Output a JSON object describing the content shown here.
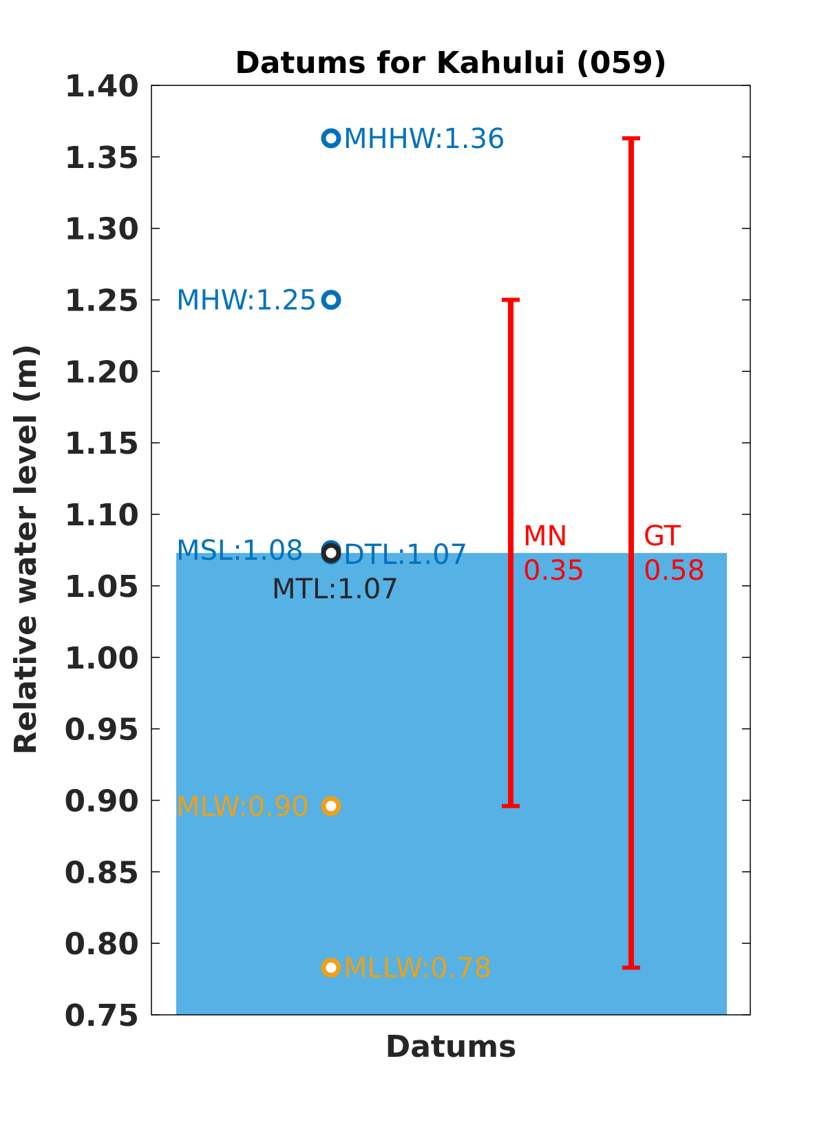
{
  "chart_data": {
    "type": "scatter",
    "title": "Datums for Kahului (059)",
    "xlabel": "Datums",
    "ylabel": "Relative water level (m)",
    "ylim": [
      0.75,
      1.4
    ],
    "yticks": [
      "0.75",
      "0.80",
      "0.85",
      "0.90",
      "0.95",
      "1.00",
      "1.05",
      "1.10",
      "1.15",
      "1.20",
      "1.25",
      "1.30",
      "1.35",
      "1.40"
    ],
    "grid": false,
    "bar": {
      "top": 1.073,
      "color": "#56B1E5"
    },
    "datums": [
      {
        "name": "MHHW",
        "value": 1.363,
        "label": "MHHW:1.36",
        "color": "#0072BD",
        "label_side": "right"
      },
      {
        "name": "MHW",
        "value": 1.25,
        "label": "MHW:1.25",
        "color": "#0072BD",
        "label_side": "left"
      },
      {
        "name": "MSL",
        "value": 1.075,
        "label": "MSL:1.08",
        "color": "#0072BD",
        "label_side": "left"
      },
      {
        "name": "DTL",
        "value": 1.072,
        "label": "DTL:1.07",
        "color": "#0072BD",
        "label_side": "right"
      },
      {
        "name": "MTL",
        "value": 1.073,
        "label": "MTL:1.07",
        "color": "#262626",
        "label_side": "below"
      },
      {
        "name": "MLW",
        "value": 0.896,
        "label": "MLW:0.90",
        "color": "#EDA018",
        "label_side": "left"
      },
      {
        "name": "MLLW",
        "value": 0.783,
        "label": "MLLW:0.78",
        "color": "#EDA018",
        "label_side": "right"
      }
    ],
    "ranges": [
      {
        "name": "MN",
        "value_label": "0.35",
        "low": 0.896,
        "high": 1.25,
        "color": "#FF0000"
      },
      {
        "name": "GT",
        "value_label": "0.58",
        "low": 0.783,
        "high": 1.363,
        "color": "#FF0000"
      }
    ]
  }
}
